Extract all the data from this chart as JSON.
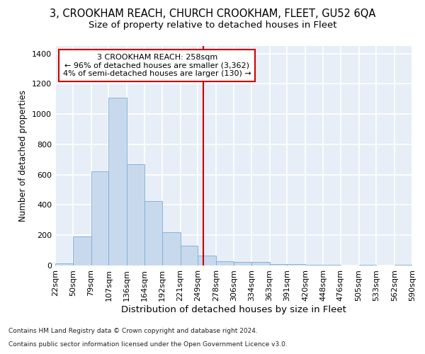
{
  "title": "3, CROOKHAM REACH, CHURCH CROOKHAM, FLEET, GU52 6QA",
  "subtitle": "Size of property relative to detached houses in Fleet",
  "xlabel": "Distribution of detached houses by size in Fleet",
  "ylabel": "Number of detached properties",
  "bar_color": "#c8d9ee",
  "bar_edge_color": "#7aaed4",
  "background_color": "#e8eef7",
  "grid_color": "#ffffff",
  "vline_x": 258,
  "vline_color": "#cc0000",
  "annotation_text": "3 CROOKHAM REACH: 258sqm\n← 96% of detached houses are smaller (3,362)\n4% of semi-detached houses are larger (130) →",
  "annotation_box_color": "#cc0000",
  "footnote1": "Contains HM Land Registry data © Crown copyright and database right 2024.",
  "footnote2": "Contains public sector information licensed under the Open Government Licence v3.0.",
  "bin_edges": [
    22,
    50,
    79,
    107,
    136,
    164,
    192,
    221,
    249,
    278,
    306,
    334,
    363,
    391,
    420,
    448,
    476,
    505,
    533,
    562,
    590
  ],
  "bar_heights": [
    15,
    190,
    620,
    1110,
    670,
    425,
    220,
    130,
    65,
    30,
    25,
    25,
    10,
    10,
    5,
    5,
    0,
    5,
    0,
    5
  ],
  "ylim": [
    0,
    1450
  ],
  "yticks": [
    0,
    200,
    400,
    600,
    800,
    1000,
    1200,
    1400
  ],
  "title_fontsize": 10.5,
  "subtitle_fontsize": 9.5,
  "xlabel_fontsize": 9.5,
  "ylabel_fontsize": 8.5,
  "tick_fontsize": 8,
  "annotation_fontsize": 8,
  "footnote_fontsize": 6.5
}
